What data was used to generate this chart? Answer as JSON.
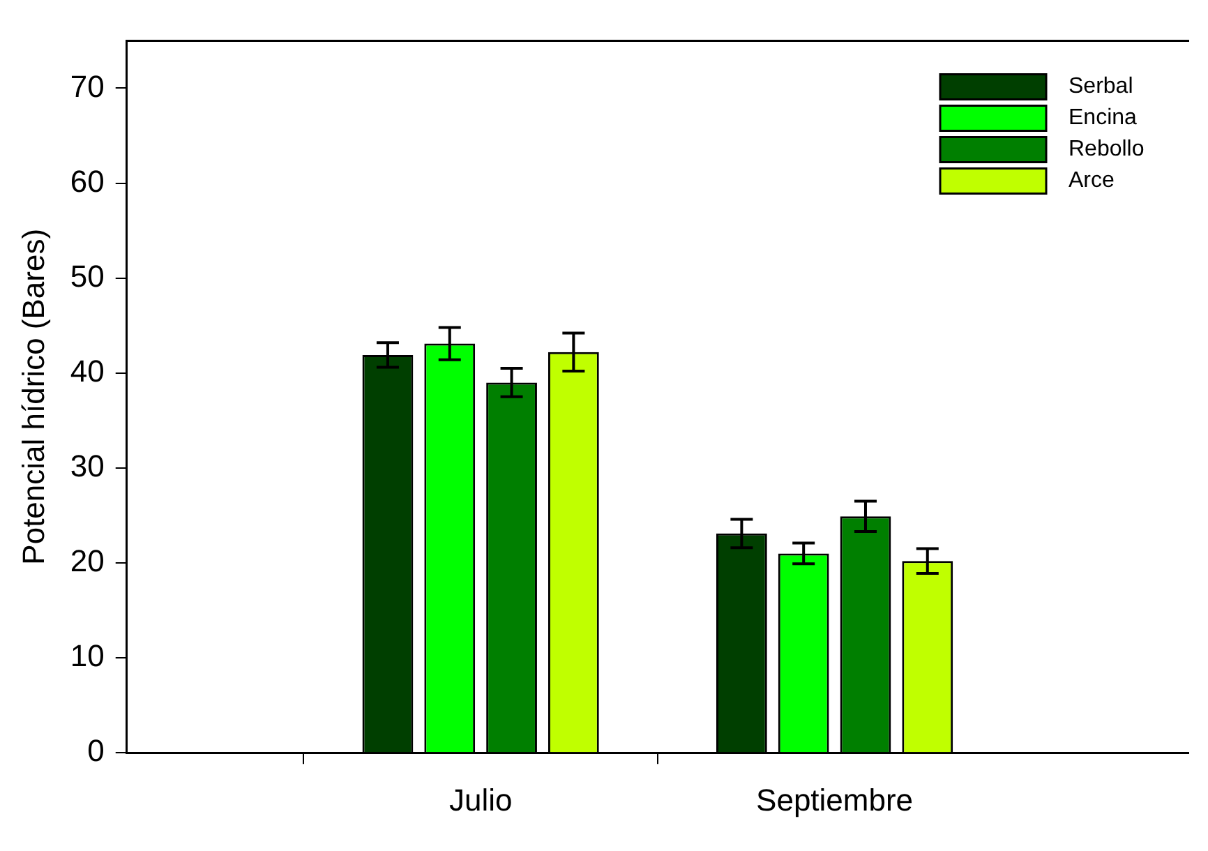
{
  "chart_data": {
    "type": "bar",
    "ylabel": "Potencial hídrico (Bares)",
    "categories": [
      null,
      "Julio",
      "Septiembre",
      null
    ],
    "series": [
      {
        "name": "Serbal",
        "color": "#003f00",
        "values": [
          null,
          41.9,
          23.1,
          null
        ],
        "errors": [
          null,
          1.3,
          1.5,
          null
        ]
      },
      {
        "name": "Encina",
        "color": "#00ff00",
        "values": [
          null,
          43.1,
          21.0,
          null
        ],
        "errors": [
          null,
          1.7,
          1.1,
          null
        ]
      },
      {
        "name": "Rebollo",
        "color": "#007f00",
        "values": [
          null,
          39.0,
          24.9,
          null
        ],
        "errors": [
          null,
          1.5,
          1.6,
          null
        ]
      },
      {
        "name": "Arce",
        "color": "#c0ff00",
        "values": [
          null,
          42.2,
          20.2,
          null
        ],
        "errors": [
          null,
          2.0,
          1.3,
          null
        ]
      }
    ],
    "ylim": [
      0,
      75
    ],
    "yticks": [
      0,
      10,
      20,
      30,
      40,
      50,
      60,
      70
    ],
    "grid": false,
    "legend": "top right"
  }
}
